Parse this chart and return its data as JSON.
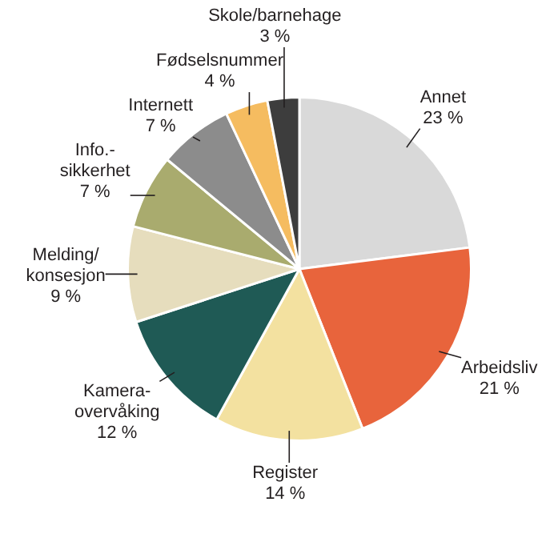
{
  "chart_data": {
    "type": "pie",
    "categories": [
      "Annet",
      "Arbeidsliv",
      "Register",
      "Kamera-\novervåking",
      "Melding/\nkonsesjon",
      "Info.-\nsikkerhet",
      "Internett",
      "Fødselsnummer",
      "Skole/barnehage"
    ],
    "values": [
      23,
      21,
      14,
      12,
      9,
      7,
      7,
      4,
      3
    ],
    "value_labels": [
      "23 %",
      "21 %",
      "14 %",
      "12 %",
      "9 %",
      "7 %",
      "7 %",
      "4 %",
      "3 %"
    ],
    "colors": [
      "#d9d9d9",
      "#e8643c",
      "#f3e1a0",
      "#1f5a55",
      "#e6ddbd",
      "#a9ab6e",
      "#8c8c8c",
      "#f5bc60",
      "#3d3d3d"
    ]
  }
}
